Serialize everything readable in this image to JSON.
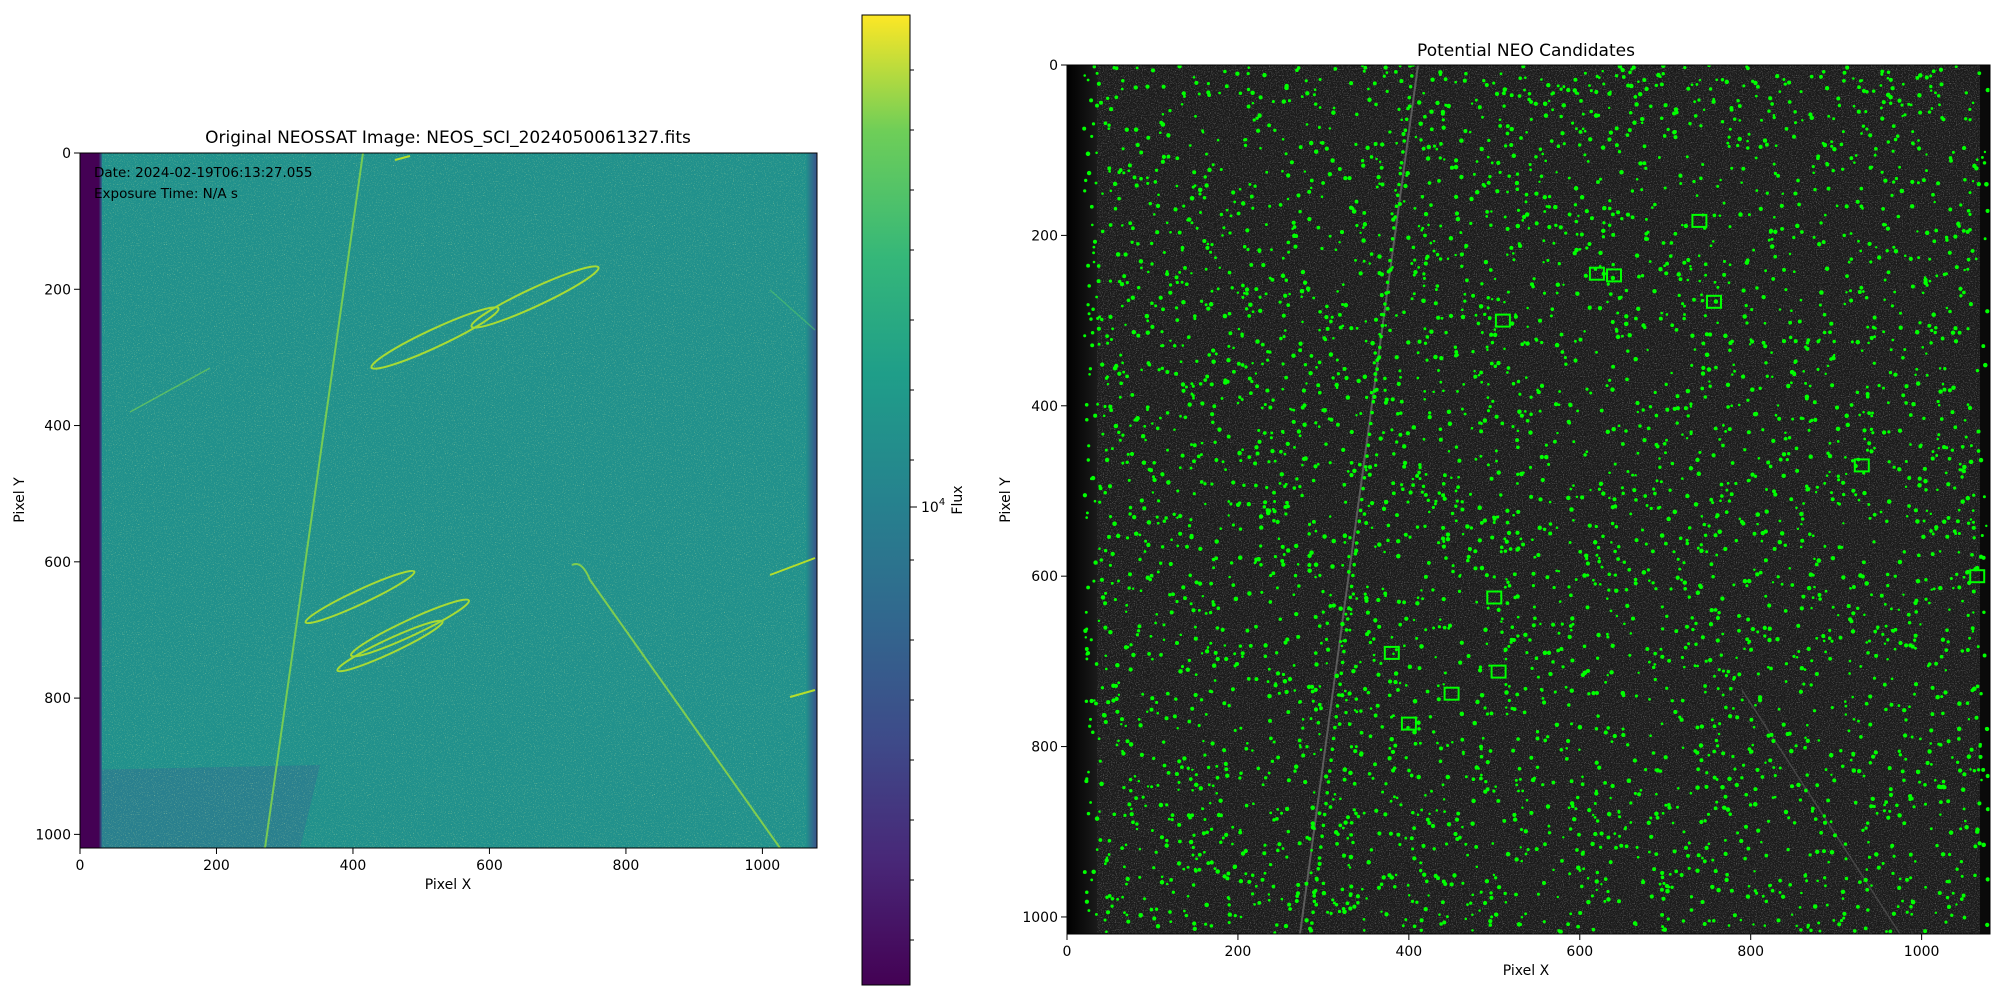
{
  "figure": {
    "left_panel": {
      "title": "Original NEOSSAT Image: NEOS_SCI_2024050061327.fits",
      "xlabel": "Pixel X",
      "ylabel": "Pixel Y",
      "overlay_date": "Date: 2024-02-19T06:13:27.055",
      "overlay_exposure": "Exposure Time: N/A s"
    },
    "colorbar": {
      "label": "Flux",
      "tick_label": "10",
      "tick_label_exp": "4"
    },
    "right_panel": {
      "title": "Potential NEO Candidates",
      "xlabel": "Pixel X",
      "ylabel": "Pixel Y"
    }
  },
  "chart_data": [
    {
      "type": "heatmap",
      "title": "Original NEOSSAT Image: NEOS_SCI_2024050061327.fits",
      "xlabel": "Pixel X",
      "ylabel": "Pixel Y",
      "xlim": [
        0,
        1080
      ],
      "ylim": [
        1020,
        0
      ],
      "x_ticks": [
        "0",
        "200",
        "400",
        "600",
        "800",
        "1000"
      ],
      "y_ticks": [
        "0",
        "200",
        "400",
        "600",
        "800",
        "1000"
      ],
      "colormap": "viridis",
      "colorbar_scale": "log",
      "colorbar_label": "Flux",
      "colors": {
        "background": "#21918c",
        "dark_band": "#440154",
        "streak": "#b5de2b",
        "lower_left": "#2f7a8e"
      },
      "annotations": [
        "Date: 2024-02-19T06:13:27.055",
        "Exposure Time: N/A s"
      ]
    },
    {
      "type": "scatter",
      "title": "Potential NEO Candidates",
      "xlabel": "Pixel X",
      "ylabel": "Pixel Y",
      "xlim": [
        0,
        1080
      ],
      "ylim": [
        1020,
        0
      ],
      "x_ticks": [
        "0",
        "200",
        "400",
        "600",
        "800",
        "1000"
      ],
      "y_ticks": [
        "0",
        "200",
        "400",
        "600",
        "800",
        "1000"
      ],
      "background": "grayscale image",
      "marker_color": "#00ff00",
      "candidate_boxes": [
        {
          "x": 620,
          "y": 245
        },
        {
          "x": 640,
          "y": 247
        },
        {
          "x": 510,
          "y": 300
        },
        {
          "x": 740,
          "y": 183
        },
        {
          "x": 757,
          "y": 278
        },
        {
          "x": 500,
          "y": 625
        },
        {
          "x": 505,
          "y": 712
        },
        {
          "x": 450,
          "y": 738
        },
        {
          "x": 400,
          "y": 773
        },
        {
          "x": 380,
          "y": 690
        },
        {
          "x": 1065,
          "y": 600
        },
        {
          "x": 930,
          "y": 470
        }
      ]
    }
  ]
}
